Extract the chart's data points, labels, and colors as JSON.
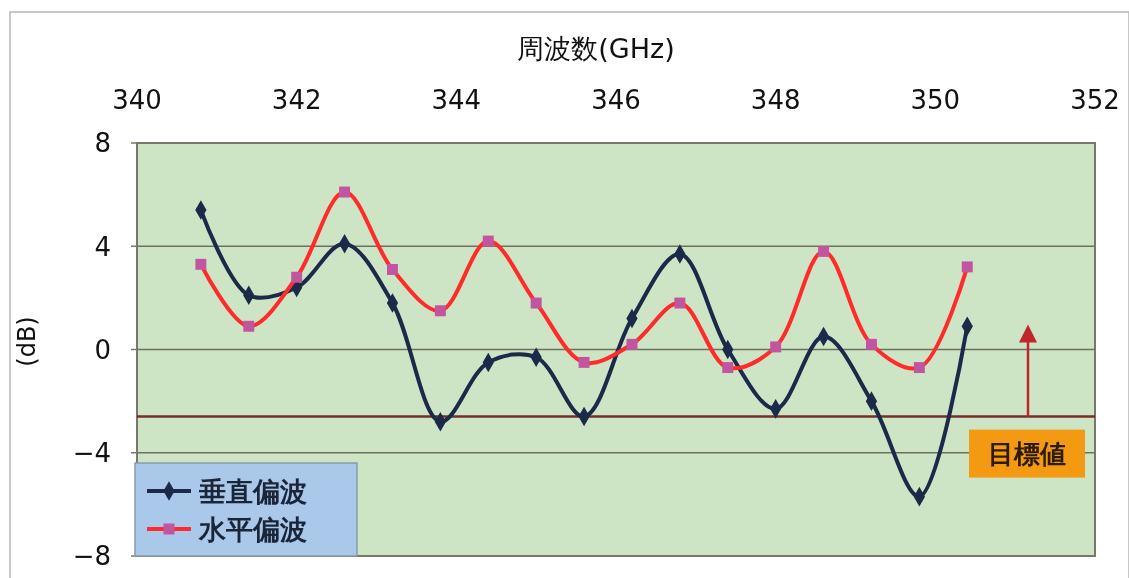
{
  "chart_data": {
    "type": "line",
    "xlabel": "周波数(GHz)",
    "ylabel": "(dB)",
    "x": [
      340.8,
      341.4,
      342.0,
      342.6,
      343.2,
      343.8,
      344.4,
      345.0,
      345.6,
      346.2,
      346.8,
      347.4,
      348.0,
      348.6,
      349.2,
      349.8,
      350.4
    ],
    "series": [
      {
        "name": "垂直偏波",
        "color": "#1c2a4a",
        "marker": "diamond",
        "values": [
          5.4,
          2.1,
          2.4,
          4.1,
          1.8,
          -2.8,
          -0.5,
          -0.3,
          -2.6,
          1.2,
          3.7,
          0.0,
          -2.3,
          0.5,
          -2.0,
          -5.7,
          0.9
        ]
      },
      {
        "name": "水平偏波",
        "color": "#ff2b2b",
        "colors": [
          "#c2559f",
          "#c2559f",
          "#c2559f",
          "#c2559f",
          "#c2559f",
          "#c2559f",
          "#c2559f",
          "#c2559f",
          "#c2559f",
          "#c2559f",
          "#c2559f",
          "#c2559f",
          "#c2559f",
          "#c2559f",
          "#c2559f",
          "#c2559f",
          "#c2559f"
        ],
        "marker": "square",
        "values": [
          3.3,
          0.9,
          2.8,
          6.1,
          3.1,
          1.5,
          4.2,
          1.8,
          -0.5,
          0.2,
          1.8,
          -0.7,
          0.1,
          3.8,
          0.2,
          -0.7,
          3.2
        ]
      }
    ],
    "xlim": [
      340,
      352
    ],
    "xticks": [
      340,
      342,
      344,
      346,
      348,
      350,
      352
    ],
    "ylim": [
      -8,
      8
    ],
    "yticks": [
      -8,
      -4,
      0,
      4,
      8
    ],
    "grid": "y",
    "legend": "bottom left",
    "ref_lines": [
      {
        "axis": "y",
        "value": -2.6,
        "label": "目標値",
        "color": "#7a2b2b"
      }
    ]
  }
}
